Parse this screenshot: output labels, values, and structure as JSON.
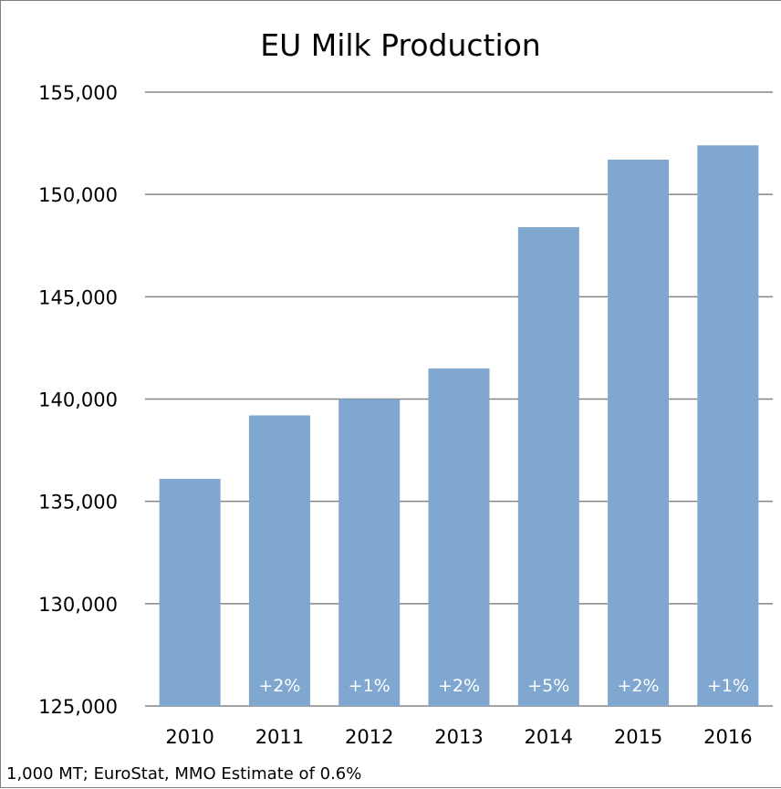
{
  "chart_data": {
    "type": "bar",
    "title": "EU Milk Production",
    "categories": [
      "2010",
      "2011",
      "2012",
      "2013",
      "2014",
      "2015",
      "2016"
    ],
    "values": [
      136100,
      139200,
      140000,
      141500,
      148400,
      151700,
      152400
    ],
    "data_labels": [
      "",
      "+2%",
      "+1%",
      "+2%",
      "+5%",
      "+2%",
      "+1%"
    ],
    "ylim": [
      125000,
      155000
    ],
    "yticks": [
      125000,
      130000,
      135000,
      140000,
      145000,
      150000,
      155000
    ],
    "ytick_labels": [
      "125,000",
      "130,000",
      "135,000",
      "140,000",
      "145,000",
      "150,000",
      "155,000"
    ],
    "xlabel": "",
    "ylabel": "",
    "grid": true,
    "legend": "none",
    "footnote": "1,000 MT; EuroStat, MMO Estimate of 0.6%",
    "colors": {
      "bar": "#7fa7cf",
      "gridline": "#868686",
      "data_label": "#ffffff",
      "frame": "#7f7f7f"
    }
  }
}
